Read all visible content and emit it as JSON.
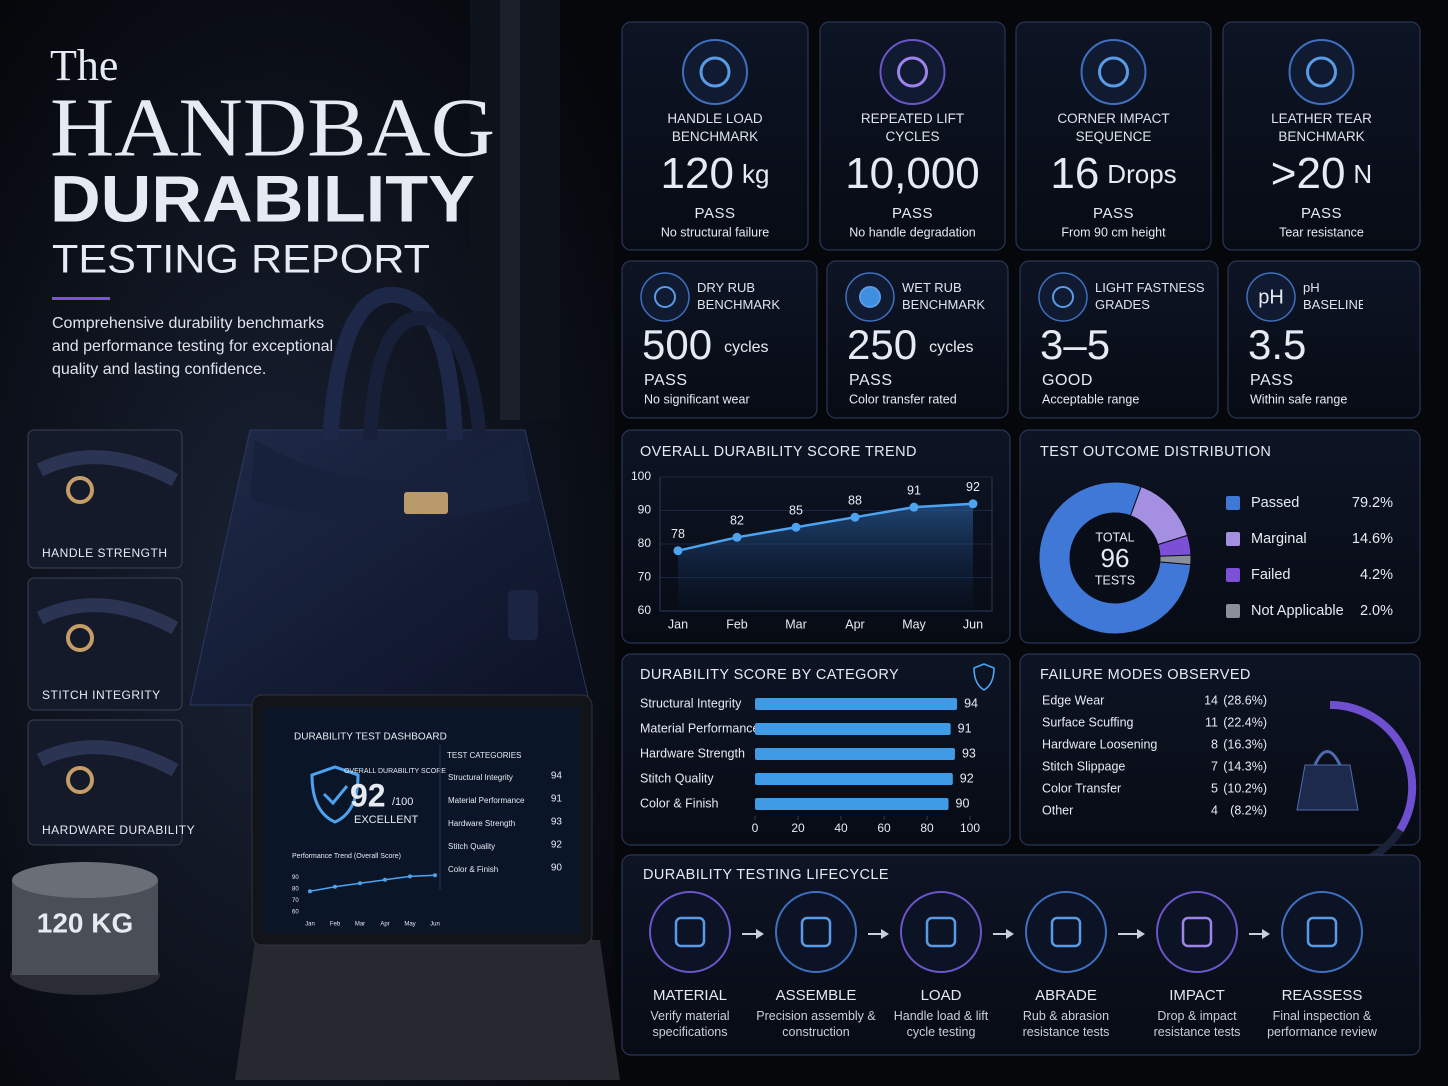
{
  "header": {
    "title_the": "The",
    "title_main": "HANDBAG",
    "title_accent": "DURABILITY",
    "title_sub": "TESTING REPORT",
    "description": "Comprehensive durability benchmarks and performance testing for exceptional quality and lasting confidence."
  },
  "thumbnails": [
    "HANDLE STRENGTH",
    "STITCH INTEGRITY",
    "HARDWARE DURABILITY"
  ],
  "weight_label": "120 KG",
  "laptop": {
    "title": "DURABILITY TEST DASHBOARD",
    "score_label": "OVERALL DURABILITY SCORE",
    "score": 92,
    "score_unit": "/100",
    "rating": "EXCELLENT",
    "trend_label": "Performance Trend (Overall Score)",
    "categories_title": "TEST CATEGORIES"
  },
  "metrics": {
    "top": [
      {
        "label": "HANDLE LOAD BENCHMARK",
        "value": "120",
        "unit": "kg",
        "status": "PASS",
        "note": "No structural failure"
      },
      {
        "label": "REPEATED LIFT CYCLES",
        "value": "10,000",
        "status": "PASS",
        "note": "No handle degradation"
      },
      {
        "label": "CORNER IMPACT SEQUENCE",
        "value": "16",
        "unit": "Drops",
        "status": "PASS",
        "note": "From 90 cm height"
      },
      {
        "label": "LEATHER TEAR BENCHMARK",
        "value": ">20",
        "unit": "N",
        "status": "PASS",
        "note": "Tear resistance"
      }
    ],
    "bottom": [
      {
        "label": "DRY RUB BENCHMARK",
        "value": "500",
        "unit": "cycles",
        "status": "PASS",
        "note": "No significant wear"
      },
      {
        "label": "WET RUB BENCHMARK",
        "value": "250",
        "unit": "cycles",
        "status": "PASS",
        "note": "Color transfer rated"
      },
      {
        "label": "LIGHT FASTNESS GRADES",
        "value": "3–5",
        "status": "GOOD",
        "note": "Acceptable range"
      },
      {
        "label": "pH BASELINE",
        "icon": "pH",
        "value": "3.5",
        "status": "PASS",
        "note": "Within safe range"
      }
    ]
  },
  "chart_data": [
    {
      "type": "line",
      "title": "OVERALL DURABILITY SCORE TREND",
      "categories": [
        "Jan",
        "Feb",
        "Mar",
        "Apr",
        "May",
        "Jun"
      ],
      "values": [
        78,
        82,
        85,
        88,
        91,
        92
      ],
      "ylim": [
        60,
        100
      ],
      "yticks": [
        60,
        70,
        80,
        90,
        100
      ],
      "grid": true,
      "color": "#4da3f0"
    },
    {
      "type": "pie",
      "title": "TEST OUTCOME DISTRIBUTION",
      "categories": [
        "Passed",
        "Marginal",
        "Failed",
        "Not Applicable"
      ],
      "values": [
        79.2,
        14.6,
        4.2,
        2.0
      ],
      "value_labels": [
        "79.2%",
        "14.6%",
        "4.2%",
        "2.0%"
      ],
      "colors": [
        "#3f78d6",
        "#a58fe0",
        "#7b4fd6",
        "#8a8f9c"
      ],
      "center_label": "TOTAL",
      "center_value": 96,
      "center_unit": "TESTS"
    },
    {
      "type": "bar",
      "title": "DURABILITY SCORE BY CATEGORY",
      "categories": [
        "Structural Integrity",
        "Material Performance",
        "Hardware Strength",
        "Stitch Quality",
        "Color & Finish"
      ],
      "values": [
        94,
        91,
        93,
        92,
        90
      ],
      "xlim": [
        0,
        100
      ],
      "xticks": [
        0,
        20,
        40,
        60,
        80,
        100
      ],
      "color": "#3f9be6"
    }
  ],
  "failure_modes": {
    "title": "FAILURE MODES OBSERVED",
    "rows": [
      {
        "name": "Edge Wear",
        "count": 14,
        "share": "(28.6%)"
      },
      {
        "name": "Surface Scuffing",
        "count": 11,
        "share": "(22.4%)"
      },
      {
        "name": "Hardware Loosening",
        "count": 8,
        "share": "(16.3%)"
      },
      {
        "name": "Stitch Slippage",
        "count": 7,
        "share": "(14.3%)"
      },
      {
        "name": "Color Transfer",
        "count": 5,
        "share": "(10.2%)"
      },
      {
        "name": "Other",
        "count": 4,
        "share": "(8.2%)"
      }
    ]
  },
  "lifecycle": {
    "title": "DURABILITY TESTING LIFECYCLE",
    "steps": [
      {
        "name": "MATERIAL",
        "desc": "Verify material specifications"
      },
      {
        "name": "ASSEMBLE",
        "desc": "Precision assembly & construction"
      },
      {
        "name": "LOAD",
        "desc": "Handle load & lift cycle testing"
      },
      {
        "name": "ABRADE",
        "desc": "Rub & abrasion resistance tests"
      },
      {
        "name": "IMPACT",
        "desc": "Drop & impact resistance tests"
      },
      {
        "name": "REASSESS",
        "desc": "Final inspection & performance review"
      }
    ]
  }
}
